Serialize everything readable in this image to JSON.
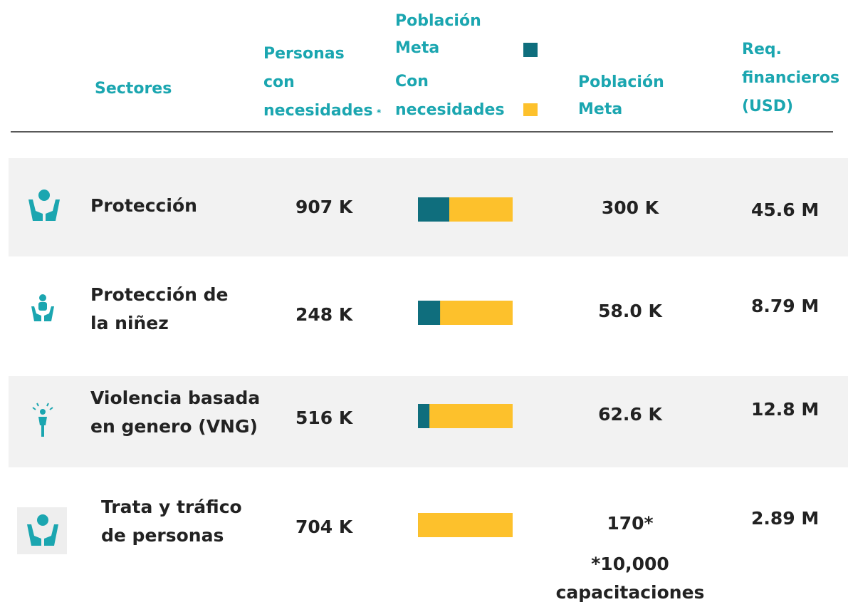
{
  "header": {
    "sectores": "Sectores",
    "personas": [
      "Personas",
      "con",
      "necesidades"
    ],
    "personas_mark": "*",
    "legend_target": [
      "Población",
      "Meta"
    ],
    "legend_needs": [
      "Con",
      "necesidades"
    ],
    "meta": [
      "Población",
      "Meta"
    ],
    "req": [
      "Req.",
      "financieros",
      "(USD)"
    ]
  },
  "rows": [
    {
      "sector": [
        "Protección"
      ],
      "needs": 907,
      "needs_label": "907 K",
      "target": 300,
      "target_label": "300 K",
      "req": "45.6 M"
    },
    {
      "sector": [
        "Protección de",
        "la niñez"
      ],
      "needs": 248,
      "needs_label": "248 K",
      "target": 58.0,
      "target_label": "58.0 K",
      "req": "8.79 M"
    },
    {
      "sector": [
        "Violencia basada",
        "en genero (VNG)"
      ],
      "needs": 516,
      "needs_label": "516 K",
      "target": 62.6,
      "target_label": "62.6 K",
      "req": "12.8 M"
    },
    {
      "sector": [
        "Trata y tráfico",
        "de personas"
      ],
      "needs": 704,
      "needs_label": "704 K",
      "target": 0.17,
      "target_label": "170*",
      "req": "2.89 M"
    }
  ],
  "note": [
    "*10,000",
    "capacitaciones"
  ]
}
